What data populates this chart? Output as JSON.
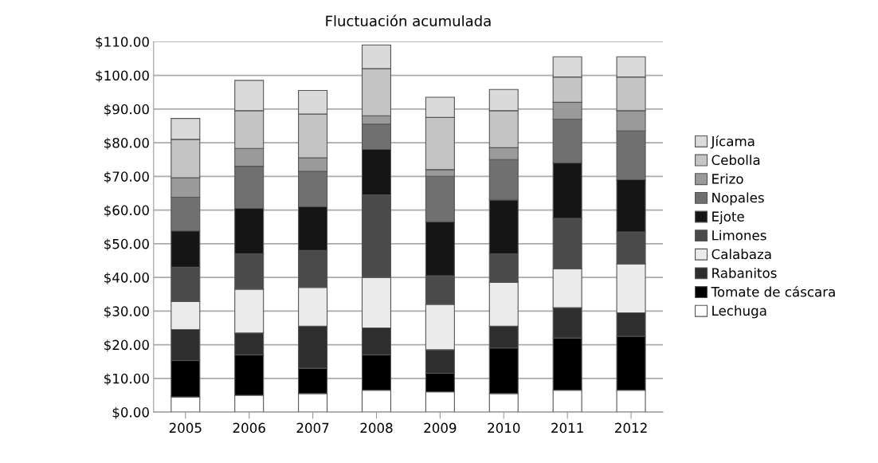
{
  "chart_data": {
    "type": "bar",
    "title": "Fluctuación acumulada",
    "stacked": true,
    "categories": [
      "2005",
      "2006",
      "2007",
      "2008",
      "2009",
      "2010",
      "2011",
      "2012"
    ],
    "series": [
      {
        "name": "Lechuga",
        "color": "#ffffff",
        "values": [
          4.5,
          5,
          5.5,
          6.5,
          6,
          5.5,
          6.5,
          6.5
        ]
      },
      {
        "name": "Tomate de cáscara",
        "color": "#000000",
        "values": [
          10.8,
          12,
          7.5,
          10.5,
          5.5,
          13.5,
          15.5,
          16
        ]
      },
      {
        "name": "Rabanitos",
        "color": "#2e2e2e",
        "values": [
          9.2,
          6.5,
          12.5,
          8,
          7,
          6.5,
          9,
          7
        ]
      },
      {
        "name": "Calabaza",
        "color": "#ebebeb",
        "values": [
          8.3,
          13,
          11.5,
          15,
          13.5,
          13,
          11.5,
          14.5
        ]
      },
      {
        "name": "Limones",
        "color": "#4a4a4a",
        "values": [
          10.2,
          10.5,
          11,
          24.5,
          8.5,
          8.5,
          15,
          9.5
        ]
      },
      {
        "name": "Ejote",
        "color": "#151515",
        "values": [
          10.8,
          13.5,
          13,
          13.5,
          16,
          16,
          16.5,
          15.5
        ]
      },
      {
        "name": "Nopales",
        "color": "#707070",
        "values": [
          10,
          12.5,
          10.5,
          7.5,
          13.5,
          12,
          13,
          14.5
        ]
      },
      {
        "name": "Erizo",
        "color": "#9a9a9a",
        "values": [
          5.8,
          5.3,
          4,
          2.5,
          2,
          3.5,
          5,
          6
        ]
      },
      {
        "name": "Cebolla",
        "color": "#c4c4c4",
        "values": [
          11.4,
          11.2,
          13,
          14,
          15.5,
          11,
          7.5,
          10
        ]
      },
      {
        "name": "Jícama",
        "color": "#dadada",
        "values": [
          6.2,
          9,
          7,
          7,
          6,
          6.3,
          6,
          6
        ]
      }
    ],
    "ylim": [
      0,
      110
    ],
    "yticks": [
      {
        "value": 0,
        "label": "$0.00"
      },
      {
        "value": 10,
        "label": "$10.00"
      },
      {
        "value": 20,
        "label": "$20.00"
      },
      {
        "value": 30,
        "label": "$30.00"
      },
      {
        "value": 40,
        "label": "$40.00"
      },
      {
        "value": 50,
        "label": "$50.00"
      },
      {
        "value": 60,
        "label": "$60.00"
      },
      {
        "value": 70,
        "label": "$70.00"
      },
      {
        "value": 80,
        "label": "$80.00"
      },
      {
        "value": 90,
        "label": "$90.00"
      },
      {
        "value": 100,
        "label": "$100.00"
      },
      {
        "value": 110,
        "label": "$110.00"
      }
    ],
    "grid": "y",
    "legend": "right"
  }
}
